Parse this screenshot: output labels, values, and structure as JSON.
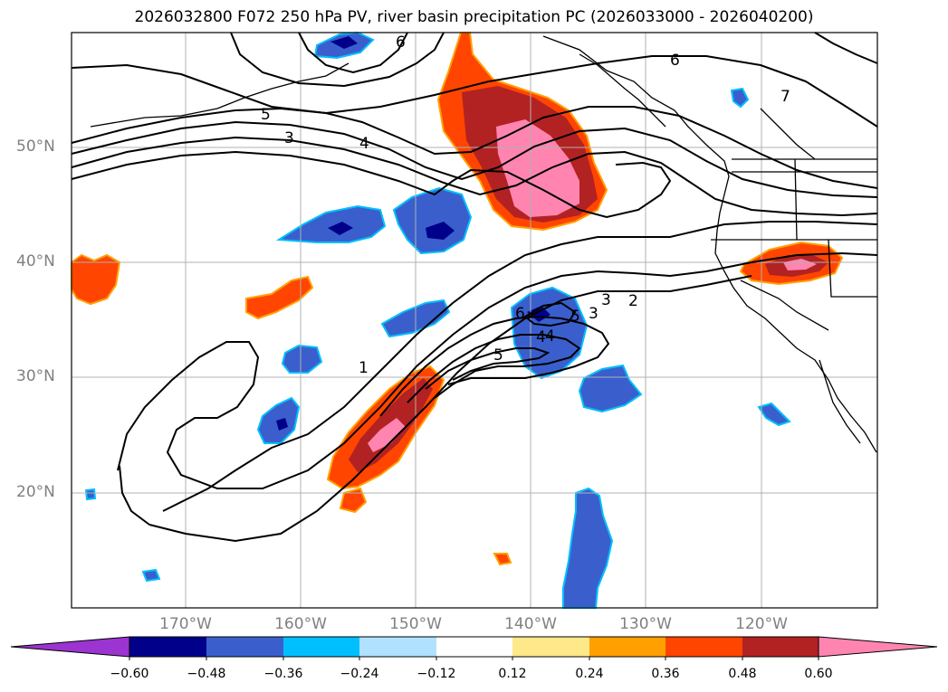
{
  "title": "2026032800 F072 250 hPa PV, river basin precipitation PC (2026033000 - 2026040200)",
  "lat_labels": [
    "50°N",
    "40°N",
    "30°N",
    "20°N"
  ],
  "lon_labels": [
    "170°W",
    "160°W",
    "150°W",
    "140°W",
    "130°W",
    "120°W"
  ],
  "contour_labels": [
    "1",
    "2",
    "3",
    "4",
    "5",
    "6",
    "7",
    "3",
    "4",
    "5",
    "6",
    "6",
    "5",
    "4",
    "3"
  ],
  "colorbar": {
    "tick_labels": [
      "−0.60",
      "−0.48",
      "−0.36",
      "−0.24",
      "−0.12",
      "0.12",
      "0.24",
      "0.36",
      "0.48",
      "0.60"
    ],
    "colors": [
      "#9b34d0",
      "#00008b",
      "#3a5fcd",
      "#00bfff",
      "#b0e2ff",
      "#ffffff",
      "#ffe88a",
      "#ffa000",
      "#ff4500",
      "#b22222",
      "#ff85b0"
    ]
  },
  "colors": {
    "neg_strong": "#00008b",
    "neg_mid": "#3a5fcd",
    "neg_weak": "#00bfff",
    "pos_weak": "#ffe88a",
    "pos_low": "#ffa000",
    "pos_mid": "#ff4500",
    "pos_high": "#b22222",
    "pos_max": "#ff85b0",
    "grid": "#b0b0b0"
  }
}
